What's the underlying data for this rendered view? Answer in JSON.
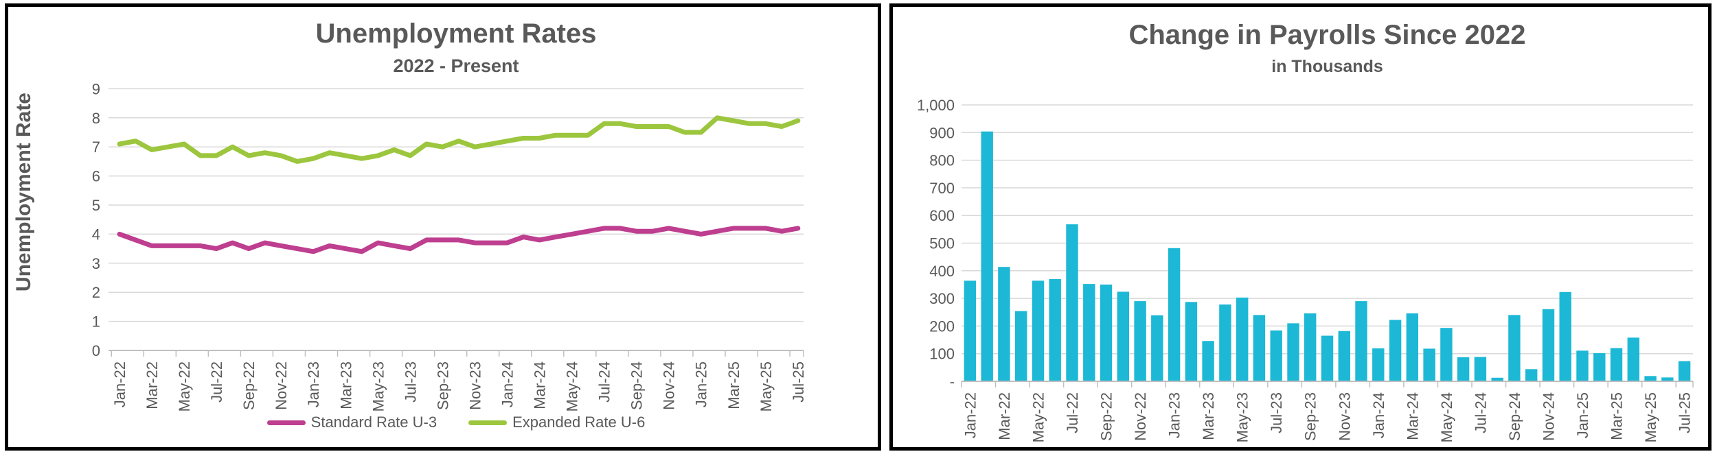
{
  "colors": {
    "text": "#595959",
    "gridline": "#D9D9D9",
    "axis": "#BFBFBF",
    "panel_border": "#000000",
    "u3_line": "#BE3E8F",
    "u6_line": "#9CC63D",
    "bar_fill": "#1CB8D6"
  },
  "chart_data": [
    {
      "type": "line",
      "title": "Unemployment Rates",
      "subtitle": "2022 - Present",
      "y_axis_title": "Unemployment Rate",
      "ylim": [
        0,
        9
      ],
      "y_tick_labels": [
        "0",
        "1",
        "2",
        "3",
        "4",
        "5",
        "6",
        "7",
        "8",
        "9"
      ],
      "grid": "horizontal",
      "legend_position": "bottom",
      "x_tick_labels": [
        "Jan-22",
        "Mar-22",
        "May-22",
        "Jul-22",
        "Sep-22",
        "Nov-22",
        "Jan-23",
        "Mar-23",
        "May-23",
        "Jul-23",
        "Sep-23",
        "Nov-23",
        "Jan-24",
        "Mar-24",
        "May-24",
        "Jul-24",
        "Sep-24",
        "Nov-24",
        "Jan-25",
        "Mar-25",
        "May-25",
        "Jul-25"
      ],
      "categories": [
        "Jan-22",
        "Feb-22",
        "Mar-22",
        "Apr-22",
        "May-22",
        "Jun-22",
        "Jul-22",
        "Aug-22",
        "Sep-22",
        "Oct-22",
        "Nov-22",
        "Dec-22",
        "Jan-23",
        "Feb-23",
        "Mar-23",
        "Apr-23",
        "May-23",
        "Jun-23",
        "Jul-23",
        "Aug-23",
        "Sep-23",
        "Oct-23",
        "Nov-23",
        "Dec-23",
        "Jan-24",
        "Feb-24",
        "Mar-24",
        "Apr-24",
        "May-24",
        "Jun-24",
        "Jul-24",
        "Aug-24",
        "Sep-24",
        "Oct-24",
        "Nov-24",
        "Dec-24",
        "Jan-25",
        "Feb-25",
        "Mar-25",
        "Apr-25",
        "May-25",
        "Jun-25",
        "Jul-25"
      ],
      "series": [
        {
          "name": "Standard Rate U-3",
          "color": "#BE3E8F",
          "values": [
            4.0,
            3.8,
            3.6,
            3.6,
            3.6,
            3.6,
            3.5,
            3.7,
            3.5,
            3.7,
            3.6,
            3.5,
            3.4,
            3.6,
            3.5,
            3.4,
            3.7,
            3.6,
            3.5,
            3.8,
            3.8,
            3.8,
            3.7,
            3.7,
            3.7,
            3.9,
            3.8,
            3.9,
            4.0,
            4.1,
            4.2,
            4.2,
            4.1,
            4.1,
            4.2,
            4.1,
            4.0,
            4.1,
            4.2,
            4.2,
            4.2,
            4.1,
            4.2
          ]
        },
        {
          "name": "Expanded Rate U-6",
          "color": "#9CC63D",
          "values": [
            7.1,
            7.2,
            6.9,
            7.0,
            7.1,
            6.7,
            6.7,
            7.0,
            6.7,
            6.8,
            6.7,
            6.5,
            6.6,
            6.8,
            6.7,
            6.6,
            6.7,
            6.9,
            6.7,
            7.1,
            7.0,
            7.2,
            7.0,
            7.1,
            7.2,
            7.3,
            7.3,
            7.4,
            7.4,
            7.4,
            7.8,
            7.8,
            7.7,
            7.7,
            7.7,
            7.5,
            7.5,
            8.0,
            7.9,
            7.8,
            7.8,
            7.7,
            7.9
          ]
        }
      ]
    },
    {
      "type": "bar",
      "title": "Change in Payrolls Since 2022",
      "subtitle": "in Thousands",
      "ylim": [
        0,
        1000
      ],
      "y_tick_labels": [
        "-",
        "100",
        "200",
        "300",
        "400",
        "500",
        "600",
        "700",
        "800",
        "900",
        "1,000"
      ],
      "grid": "horizontal",
      "bar_color": "#1CB8D6",
      "x_tick_labels": [
        "Jan-22",
        "Mar-22",
        "May-22",
        "Jul-22",
        "Sep-22",
        "Nov-22",
        "Jan-23",
        "Mar-23",
        "May-23",
        "Jul-23",
        "Sep-23",
        "Nov-23",
        "Jan-24",
        "Mar-24",
        "May-24",
        "Jul-24",
        "Sep-24",
        "Nov-24",
        "Jan-25",
        "Mar-25",
        "May-25",
        "Jul-25"
      ],
      "categories": [
        "Jan-22",
        "Feb-22",
        "Mar-22",
        "Apr-22",
        "May-22",
        "Jun-22",
        "Jul-22",
        "Aug-22",
        "Sep-22",
        "Oct-22",
        "Nov-22",
        "Dec-22",
        "Jan-23",
        "Feb-23",
        "Mar-23",
        "Apr-23",
        "May-23",
        "Jun-23",
        "Jul-23",
        "Aug-23",
        "Sep-23",
        "Oct-23",
        "Nov-23",
        "Dec-23",
        "Jan-24",
        "Feb-24",
        "Mar-24",
        "Apr-24",
        "May-24",
        "Jun-24",
        "Jul-24",
        "Aug-24",
        "Sep-24",
        "Oct-24",
        "Nov-24",
        "Dec-24",
        "Jan-25",
        "Feb-25",
        "Mar-25",
        "Apr-25",
        "May-25",
        "Jun-25",
        "Jul-25"
      ],
      "values": [
        364,
        904,
        414,
        254,
        364,
        370,
        568,
        352,
        350,
        324,
        290,
        239,
        482,
        287,
        146,
        278,
        303,
        240,
        184,
        210,
        246,
        165,
        182,
        290,
        119,
        222,
        246,
        118,
        193,
        87,
        88,
        13,
        240,
        44,
        261,
        323,
        111,
        102,
        120,
        158,
        19,
        14,
        73
      ]
    }
  ]
}
